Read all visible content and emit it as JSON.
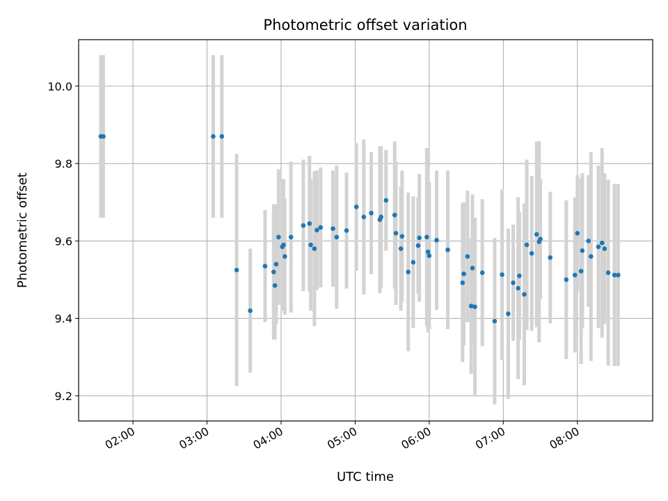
{
  "chart_data": {
    "type": "scatter",
    "title": "Photometric offset variation",
    "xlabel": "UTC time",
    "ylabel": "Photometric offset",
    "x_is_time_of_day": true,
    "xlim": [
      "01:16",
      "09:01"
    ],
    "ylim": [
      9.135,
      10.12
    ],
    "x_ticks": [
      "02:00",
      "03:00",
      "04:00",
      "05:00",
      "06:00",
      "07:00",
      "08:00"
    ],
    "y_ticks": [
      "9.2",
      "9.4",
      "9.6",
      "9.8",
      "10.0"
    ],
    "y_tick_values": [
      9.2,
      9.4,
      9.6,
      9.8,
      10.0
    ],
    "grid": true,
    "marker_color": "#1f77b4",
    "errorbar_color": "#d3d3d3",
    "points": [
      {
        "x": "01:34",
        "y": 9.87,
        "err": 0.21
      },
      {
        "x": "01:36",
        "y": 9.87,
        "err": 0.21
      },
      {
        "x": "03:05",
        "y": 9.87,
        "err": 0.21
      },
      {
        "x": "03:12",
        "y": 9.87,
        "err": 0.21
      },
      {
        "x": "03:24",
        "y": 9.525,
        "err": 0.3
      },
      {
        "x": "03:35",
        "y": 9.42,
        "err": 0.16
      },
      {
        "x": "03:47",
        "y": 9.535,
        "err": 0.145
      },
      {
        "x": "03:54",
        "y": 9.52,
        "err": 0.175
      },
      {
        "x": "03:55",
        "y": 9.485,
        "err": 0.14
      },
      {
        "x": "03:56",
        "y": 9.54,
        "err": 0.155
      },
      {
        "x": "03:58",
        "y": 9.61,
        "err": 0.175
      },
      {
        "x": "04:01",
        "y": 9.585,
        "err": 0.165
      },
      {
        "x": "04:02",
        "y": 9.59,
        "err": 0.17
      },
      {
        "x": "04:03",
        "y": 9.56,
        "err": 0.15
      },
      {
        "x": "04:08",
        "y": 9.61,
        "err": 0.195
      },
      {
        "x": "04:18",
        "y": 9.64,
        "err": 0.17
      },
      {
        "x": "04:23",
        "y": 9.645,
        "err": 0.175
      },
      {
        "x": "04:24",
        "y": 9.59,
        "err": 0.17
      },
      {
        "x": "04:27",
        "y": 9.58,
        "err": 0.2
      },
      {
        "x": "04:29",
        "y": 9.628,
        "err": 0.155
      },
      {
        "x": "04:32",
        "y": 9.635,
        "err": 0.155
      },
      {
        "x": "04:42",
        "y": 9.632,
        "err": 0.15
      },
      {
        "x": "04:45",
        "y": 9.61,
        "err": 0.185
      },
      {
        "x": "04:53",
        "y": 9.627,
        "err": 0.15
      },
      {
        "x": "05:01",
        "y": 9.688,
        "err": 0.165
      },
      {
        "x": "05:07",
        "y": 9.662,
        "err": 0.2
      },
      {
        "x": "05:13",
        "y": 9.672,
        "err": 0.158
      },
      {
        "x": "05:20",
        "y": 9.655,
        "err": 0.19
      },
      {
        "x": "05:21",
        "y": 9.662,
        "err": 0.183
      },
      {
        "x": "05:25",
        "y": 9.705,
        "err": 0.13
      },
      {
        "x": "05:32",
        "y": 9.667,
        "err": 0.19
      },
      {
        "x": "05:33",
        "y": 9.62,
        "err": 0.185
      },
      {
        "x": "05:37",
        "y": 9.58,
        "err": 0.16
      },
      {
        "x": "05:38",
        "y": 9.612,
        "err": 0.17
      },
      {
        "x": "05:43",
        "y": 9.52,
        "err": 0.205
      },
      {
        "x": "05:47",
        "y": 9.545,
        "err": 0.17
      },
      {
        "x": "05:51",
        "y": 9.588,
        "err": 0.125
      },
      {
        "x": "05:52",
        "y": 9.608,
        "err": 0.165
      },
      {
        "x": "05:58",
        "y": 9.61,
        "err": 0.23
      },
      {
        "x": "05:59",
        "y": 9.572,
        "err": 0.208
      },
      {
        "x": "06:00",
        "y": 9.562,
        "err": 0.19
      },
      {
        "x": "06:06",
        "y": 9.602,
        "err": 0.18
      },
      {
        "x": "06:15",
        "y": 9.577,
        "err": 0.205
      },
      {
        "x": "06:27",
        "y": 9.492,
        "err": 0.205
      },
      {
        "x": "06:28",
        "y": 9.515,
        "err": 0.185
      },
      {
        "x": "06:31",
        "y": 9.56,
        "err": 0.17
      },
      {
        "x": "06:34",
        "y": 9.432,
        "err": 0.175
      },
      {
        "x": "06:35",
        "y": 9.53,
        "err": 0.19
      },
      {
        "x": "06:37",
        "y": 9.43,
        "err": 0.23
      },
      {
        "x": "06:43",
        "y": 9.518,
        "err": 0.19
      },
      {
        "x": "06:53",
        "y": 9.393,
        "err": 0.215
      },
      {
        "x": "06:59",
        "y": 9.513,
        "err": 0.22
      },
      {
        "x": "07:04",
        "y": 9.412,
        "err": 0.22
      },
      {
        "x": "07:08",
        "y": 9.492,
        "err": 0.15
      },
      {
        "x": "07:12",
        "y": 9.478,
        "err": 0.235
      },
      {
        "x": "07:13",
        "y": 9.51,
        "err": 0.165
      },
      {
        "x": "07:17",
        "y": 9.462,
        "err": 0.235
      },
      {
        "x": "07:19",
        "y": 9.59,
        "err": 0.22
      },
      {
        "x": "07:23",
        "y": 9.568,
        "err": 0.2
      },
      {
        "x": "07:27",
        "y": 9.617,
        "err": 0.24
      },
      {
        "x": "07:29",
        "y": 9.598,
        "err": 0.26
      },
      {
        "x": "07:30",
        "y": 9.605,
        "err": 0.155
      },
      {
        "x": "07:38",
        "y": 9.557,
        "err": 0.17
      },
      {
        "x": "07:51",
        "y": 9.5,
        "err": 0.205
      },
      {
        "x": "07:58",
        "y": 9.512,
        "err": 0.2
      },
      {
        "x": "08:00",
        "y": 9.62,
        "err": 0.15
      },
      {
        "x": "08:03",
        "y": 9.522,
        "err": 0.24
      },
      {
        "x": "08:04",
        "y": 9.575,
        "err": 0.2
      },
      {
        "x": "08:09",
        "y": 9.6,
        "err": 0.17
      },
      {
        "x": "08:11",
        "y": 9.56,
        "err": 0.27
      },
      {
        "x": "08:17",
        "y": 9.585,
        "err": 0.21
      },
      {
        "x": "08:20",
        "y": 9.595,
        "err": 0.245
      },
      {
        "x": "08:22",
        "y": 9.58,
        "err": 0.195
      },
      {
        "x": "08:25",
        "y": 9.518,
        "err": 0.24
      },
      {
        "x": "08:30",
        "y": 9.512,
        "err": 0.235
      },
      {
        "x": "08:33",
        "y": 9.512,
        "err": 0.235
      }
    ]
  }
}
